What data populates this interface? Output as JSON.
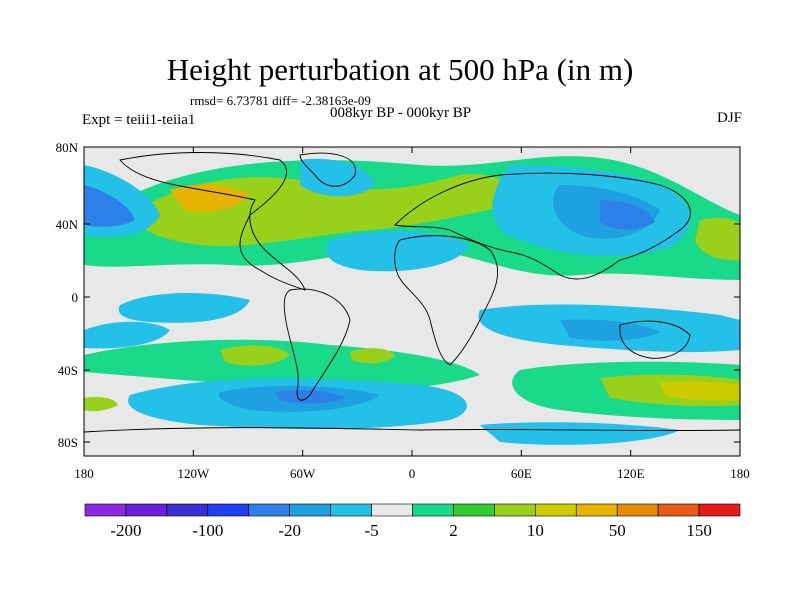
{
  "title": "Height perturbation at 500 hPa (in m)",
  "stats": "rmsd= 6.73781 diff= -2.38163e-09",
  "left_label": "Expt = teiii1-teiia1",
  "center_label": "008kyr BP - 000kyr BP",
  "right_label": "DJF",
  "lat_ticks": [
    "80N",
    "40N",
    "0",
    "40S",
    "80S"
  ],
  "lon_ticks": [
    "180",
    "120W",
    "60W",
    "0",
    "60E",
    "120E",
    "180"
  ],
  "colorbar": {
    "colors": [
      "#8a2be2",
      "#6a1fd8",
      "#3a2fd0",
      "#1f3ff0",
      "#2f7fe8",
      "#1fa0e0",
      "#23c0e8",
      "#e8e8e8",
      "#19d98a",
      "#33cc33",
      "#99d11a",
      "#cccc00",
      "#e6b400",
      "#e68a00",
      "#e65a1a",
      "#e61a1a"
    ],
    "labels": [
      "-200",
      "-100",
      "-20",
      "-5",
      "2",
      "10",
      "50",
      "150"
    ]
  },
  "colors": {
    "background_field": "#e8e8e8",
    "coastline": "#000000"
  }
}
